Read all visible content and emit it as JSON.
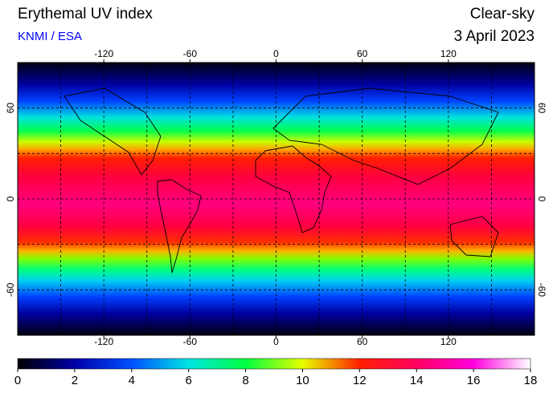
{
  "header": {
    "title": "Erythemal UV index",
    "source": "KNMI / ESA",
    "mode": "Clear-sky",
    "date": "3 April 2023"
  },
  "map": {
    "lon_range": [
      -180,
      180
    ],
    "lat_range": [
      -90,
      90
    ],
    "lon_ticks": [
      -120,
      -60,
      0,
      60,
      120
    ],
    "lat_ticks": [
      60,
      0,
      -60
    ]
  },
  "colorbar": {
    "range": [
      0,
      18
    ],
    "ticks": [
      0,
      2,
      4,
      6,
      8,
      10,
      12,
      14,
      16,
      18
    ],
    "colors": [
      "#000000",
      "#0000a8",
      "#0050ff",
      "#00e4e4",
      "#00ff40",
      "#e8ff00",
      "#ff2000",
      "#ff0060",
      "#ff00e0",
      "#ffffff"
    ]
  }
}
